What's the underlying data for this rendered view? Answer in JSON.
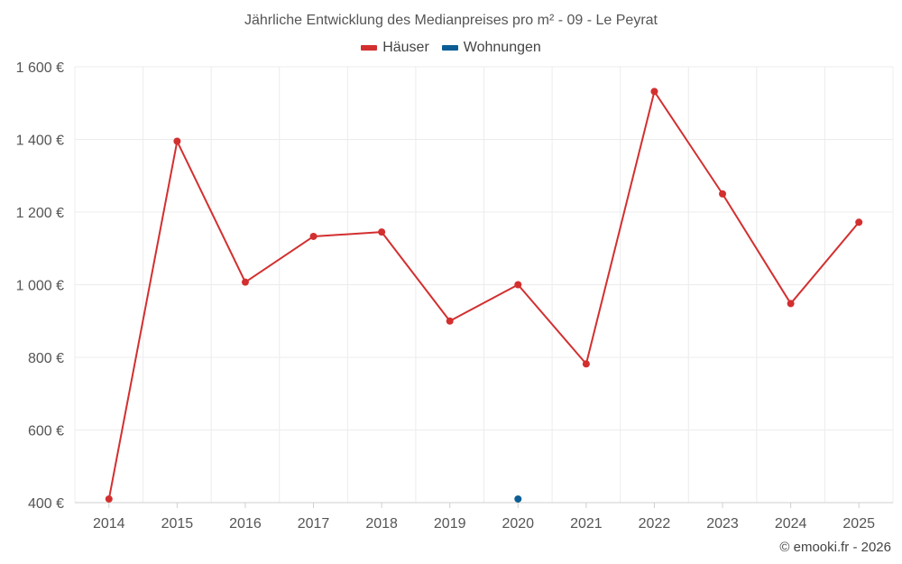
{
  "chart_data": {
    "type": "line",
    "title": "Jährliche Entwicklung des Medianpreises pro m² - 09 - Le Peyrat",
    "categories": [
      "2014",
      "2015",
      "2016",
      "2017",
      "2018",
      "2019",
      "2020",
      "2021",
      "2022",
      "2023",
      "2024",
      "2025"
    ],
    "series": [
      {
        "name": "Häuser",
        "color": "#d32f2f",
        "values": [
          410,
          1395,
          1007,
          1133,
          1145,
          900,
          1000,
          782,
          1532,
          1250,
          948,
          1172
        ]
      },
      {
        "name": "Wohnungen",
        "color": "#0b5e95",
        "values": [
          null,
          null,
          null,
          null,
          null,
          null,
          410,
          null,
          null,
          null,
          null,
          null
        ]
      }
    ],
    "yticks": [
      400,
      600,
      800,
      1000,
      1200,
      1400,
      1600
    ],
    "ytick_labels": [
      "400 €",
      "600 €",
      "800 €",
      "1 000 €",
      "1 200 €",
      "1 400 €",
      "1 600 €"
    ],
    "ylim": [
      400,
      1600
    ],
    "grid": true,
    "legend_position": "top-center"
  },
  "credit": "© emooki.fr - 2026"
}
